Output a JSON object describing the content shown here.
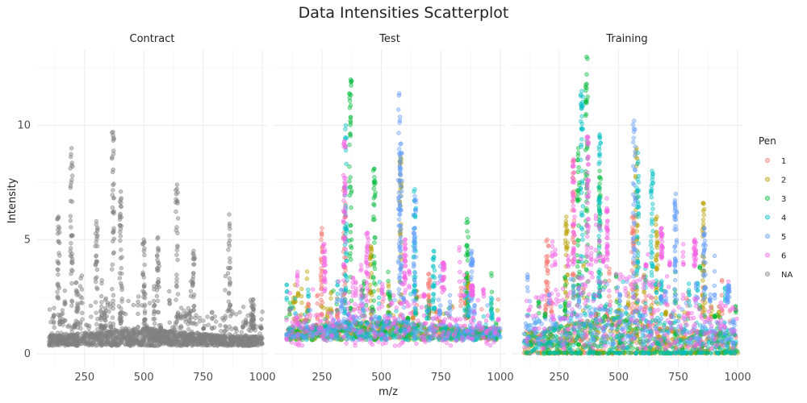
{
  "chart_data": {
    "type": "scatter",
    "title": "Data Intensities Scatterplot",
    "xlabel": "m/z",
    "ylabel": "Intensity",
    "xlim": [
      50,
      1020
    ],
    "ylim": [
      -0.6,
      13.3
    ],
    "xticks": [
      250,
      500,
      750,
      1000
    ],
    "yticks": [
      0,
      5,
      10
    ],
    "grid": true,
    "legend_position": "right",
    "legend": {
      "title": "Pen",
      "entries": [
        {
          "label": "1",
          "color": "#F8766D"
        },
        {
          "label": "2",
          "color": "#B79F00"
        },
        {
          "label": "3",
          "color": "#00BA38"
        },
        {
          "label": "4",
          "color": "#00BFC4"
        },
        {
          "label": "5",
          "color": "#619CFF"
        },
        {
          "label": "6",
          "color": "#F564E3"
        },
        {
          "label": "NA",
          "color": "#808080"
        }
      ]
    },
    "panels": [
      {
        "name": "Contract",
        "series": [
          {
            "name": "NA",
            "color": "#808080",
            "band": [
              0.35,
              1.1
            ],
            "peaks": [
              [
                195,
                9.0
              ],
              [
                370,
                9.7
              ],
              [
                403,
                7.1
              ],
              [
                640,
                7.4
              ],
              [
                860,
                6.1
              ],
              [
                140,
                6.0
              ],
              [
                300,
                5.8
              ],
              [
                500,
                5.0
              ],
              [
                560,
                5.1
              ],
              [
                710,
                4.5
              ],
              [
                960,
                2.2
              ]
            ]
          }
        ]
      },
      {
        "name": "Test",
        "series": [
          {
            "name": "1",
            "color": "#F8766D",
            "band": [
              0.7,
              1.5
            ],
            "peaks": [
              [
                345,
                7.3
              ],
              [
                250,
                5.5
              ],
              [
                700,
                3.5
              ]
            ]
          },
          {
            "name": "2",
            "color": "#B79F00",
            "band": [
              0.6,
              1.4
            ],
            "peaks": [
              [
                580,
                8.6
              ],
              [
                455,
                4.7
              ],
              [
                860,
                3.4
              ]
            ]
          },
          {
            "name": "3",
            "color": "#00BA38",
            "band": [
              0.6,
              1.5
            ],
            "peaks": [
              [
                370,
                12.0
              ],
              [
                470,
                8.1
              ],
              [
                860,
                5.9
              ]
            ]
          },
          {
            "name": "4",
            "color": "#00BFC4",
            "band": [
              0.6,
              1.5
            ],
            "peaks": [
              [
                350,
                10.0
              ],
              [
                640,
                7.2
              ],
              [
                720,
                4.5
              ]
            ]
          },
          {
            "name": "5",
            "color": "#619CFF",
            "band": [
              0.6,
              1.7
            ],
            "peaks": [
              [
                575,
                11.4
              ],
              [
                582,
                9.2
              ],
              [
                640,
                6.9
              ],
              [
                880,
                4.5
              ]
            ]
          },
          {
            "name": "6",
            "color": "#F564E3",
            "band": [
              0.35,
              2.5
            ],
            "peaks": [
              [
                345,
                9.3
              ],
              [
                260,
                4.8
              ],
              [
                440,
                5.3
              ],
              [
                600,
                5.0
              ],
              [
                760,
                4.0
              ],
              [
                880,
                3.0
              ]
            ]
          }
        ]
      },
      {
        "name": "Training",
        "series": [
          {
            "name": "1",
            "color": "#F8766D",
            "band": [
              0.0,
              1.6
            ],
            "peaks": [
              [
                310,
                8.5
              ],
              [
                200,
                5.0
              ],
              [
                560,
                6.0
              ]
            ]
          },
          {
            "name": "2",
            "color": "#B79F00",
            "band": [
              0.0,
              1.6
            ],
            "peaks": [
              [
                575,
                9.0
              ],
              [
                855,
                6.6
              ],
              [
                660,
                6.0
              ],
              [
                280,
                6.0
              ]
            ]
          },
          {
            "name": "3",
            "color": "#00BA38",
            "band": [
              0.0,
              1.6
            ],
            "peaks": [
              [
                365,
                13.0
              ],
              [
                330,
                9.0
              ],
              [
                420,
                8.0
              ]
            ]
          },
          {
            "name": "4",
            "color": "#00BFC4",
            "band": [
              0.0,
              2.2
            ],
            "peaks": [
              [
                345,
                11.5
              ],
              [
                420,
                9.6
              ],
              [
                580,
                8.8
              ],
              [
                640,
                8.0
              ]
            ]
          },
          {
            "name": "5",
            "color": "#619CFF",
            "band": [
              0.35,
              2.2
            ],
            "peaks": [
              [
                565,
                10.2
              ],
              [
                740,
                7.0
              ],
              [
                860,
                5.5
              ],
              [
                960,
                3.0
              ]
            ]
          },
          {
            "name": "6",
            "color": "#F564E3",
            "band": [
              0.2,
              3.8
            ],
            "peaks": [
              [
                310,
                8.5
              ],
              [
                450,
                6.8
              ],
              [
                370,
                9.5
              ],
              [
                680,
                5.5
              ],
              [
                820,
                5.0
              ]
            ]
          }
        ]
      }
    ]
  }
}
